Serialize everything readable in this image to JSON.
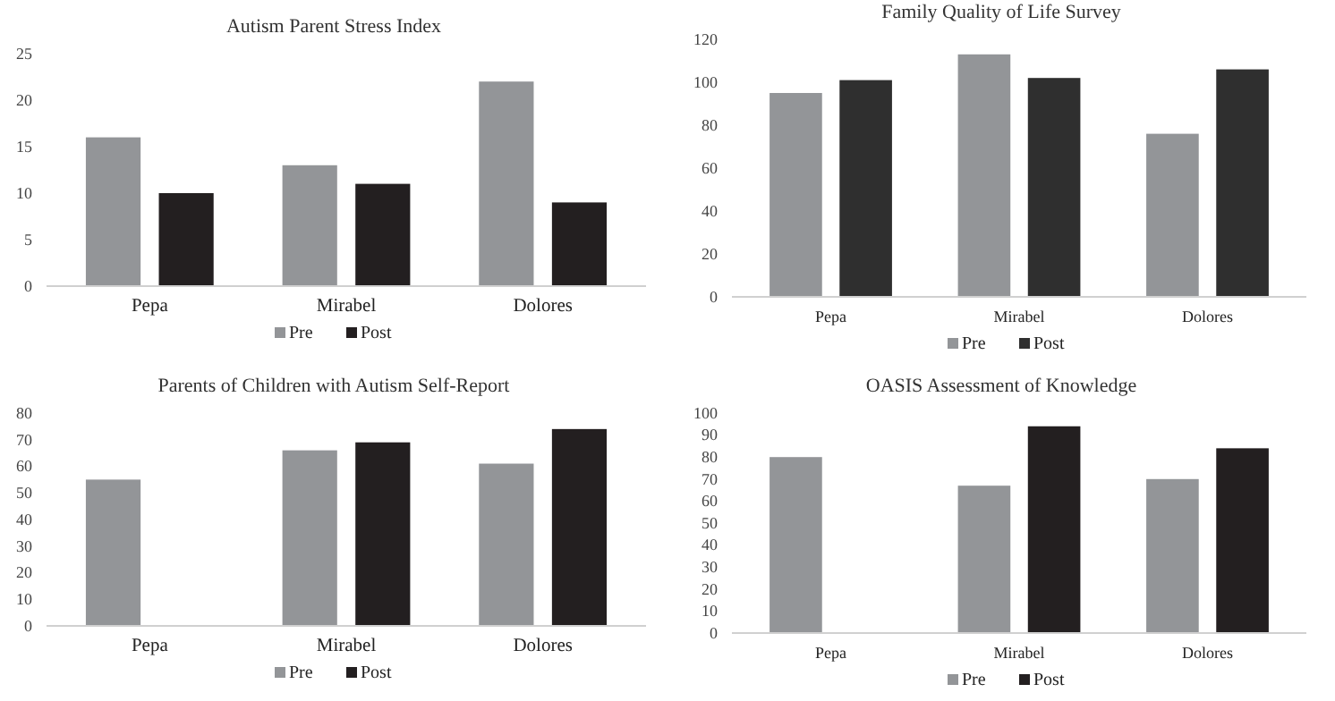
{
  "chart_data": [
    {
      "type": "bar",
      "title": "Autism Parent Stress Index",
      "categories": [
        "Pepa",
        "Mirabel",
        "Dolores"
      ],
      "ylim": [
        0,
        25
      ],
      "yticks": [
        0,
        5,
        10,
        15,
        20,
        25
      ],
      "legend": "bottom",
      "series": [
        {
          "name": "Pre",
          "color": "#939598",
          "values": [
            16,
            13,
            22
          ]
        },
        {
          "name": "Post",
          "color": "#231f20",
          "values": [
            10,
            11,
            9
          ]
        }
      ]
    },
    {
      "type": "bar",
      "title": "Family Quality of Life Survey",
      "categories": [
        "Pepa",
        "Mirabel",
        "Dolores"
      ],
      "ylim": [
        0,
        120
      ],
      "yticks": [
        0,
        20,
        40,
        60,
        80,
        100,
        120
      ],
      "legend": "bottom",
      "series": [
        {
          "name": "Pre",
          "color": "#939598",
          "values": [
            95,
            113,
            76
          ]
        },
        {
          "name": "Post",
          "color": "#2f2f2f",
          "values": [
            101,
            102,
            106
          ]
        }
      ]
    },
    {
      "type": "bar",
      "title": "Parents of Children with Autism Self-Report",
      "categories": [
        "Pepa",
        "Mirabel",
        "Dolores"
      ],
      "ylim": [
        0,
        80
      ],
      "yticks": [
        0,
        10,
        20,
        30,
        40,
        50,
        60,
        70,
        80
      ],
      "legend": "bottom",
      "series": [
        {
          "name": "Pre",
          "color": "#939598",
          "values": [
            55,
            66,
            61
          ]
        },
        {
          "name": "Post",
          "color": "#231f20",
          "values": [
            null,
            69,
            74
          ]
        }
      ]
    },
    {
      "type": "bar",
      "title": "OASIS Assessment of Knowledge",
      "categories": [
        "Pepa",
        "Mirabel",
        "Dolores"
      ],
      "ylim": [
        0,
        100
      ],
      "yticks": [
        0,
        10,
        20,
        30,
        40,
        50,
        60,
        70,
        80,
        90,
        100
      ],
      "legend": "bottom",
      "series": [
        {
          "name": "Pre",
          "color": "#939598",
          "values": [
            80,
            67,
            70
          ]
        },
        {
          "name": "Post",
          "color": "#231f20",
          "values": [
            null,
            94,
            84
          ]
        }
      ]
    }
  ]
}
